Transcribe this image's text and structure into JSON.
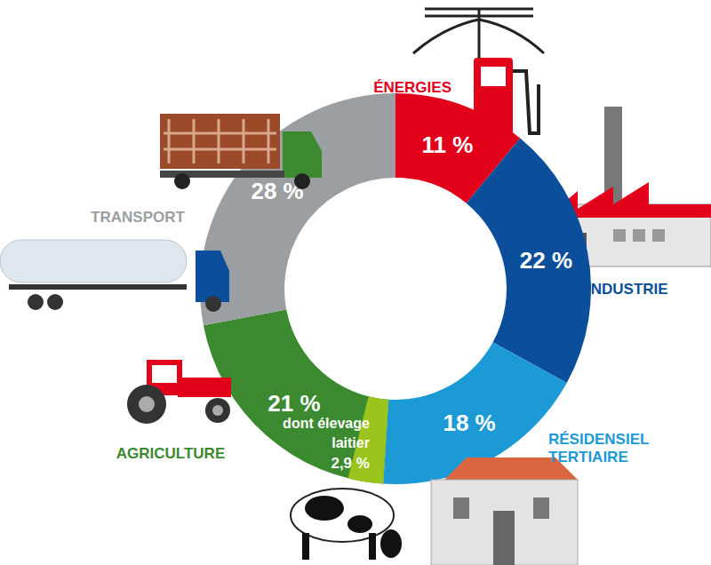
{
  "chart_data": {
    "type": "donut",
    "categories": [
      "ÉNERGIES",
      "INDUSTRIE",
      "RÉSIDENSIEL TERTIAIRE",
      "AGRICULTURE",
      "TRANSPORT"
    ],
    "values": [
      11,
      22,
      18,
      21,
      28
    ],
    "value_labels": [
      "11 %",
      "22 %",
      "18 %",
      "21 %",
      "28 %"
    ],
    "colors": [
      "#e2001a",
      "#0b4f9c",
      "#1b9ad6",
      "#3b8a2f",
      "#9b9fa2"
    ],
    "data_labels": true,
    "sub_slice": {
      "parent": "AGRICULTURE",
      "name": "dont élevage laitier",
      "value": 2.9,
      "value_label": "2,9 %",
      "color": "#9bc41c"
    }
  }
}
